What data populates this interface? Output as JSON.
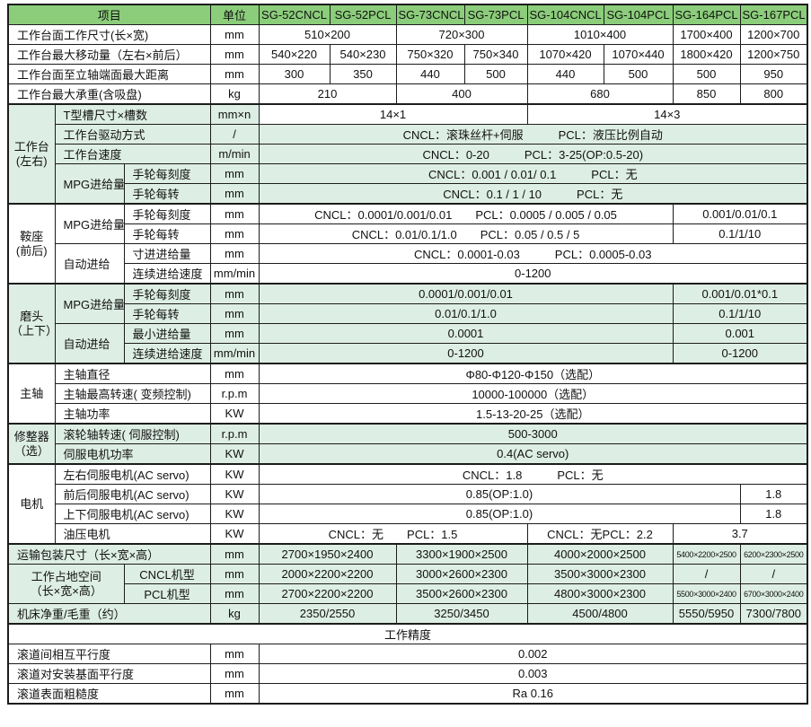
{
  "colors": {
    "header_green": "#8bcd7a",
    "section_light_green": "#ddeee4",
    "grid_border": "#1c1c1c"
  },
  "table": {
    "rows": [
      {
        "tb": true,
        "cells": [
          {
            "t": "项目",
            "cs": 3,
            "c": "hdr",
            "n": "column-header-item"
          },
          {
            "t": "单位",
            "c": "hdr",
            "n": "column-header-unit"
          },
          {
            "t": "SG-52CNCL",
            "c": "hdr",
            "n": "column-header-model"
          },
          {
            "t": "SG-52PCL",
            "c": "hdr",
            "n": "column-header-model"
          },
          {
            "t": "SG-73CNCL",
            "c": "hdr",
            "n": "column-header-model"
          },
          {
            "t": "SG-73PCL",
            "c": "hdr",
            "n": "column-header-model"
          },
          {
            "t": "SG-104CNCL",
            "c": "hdr",
            "n": "column-header-model"
          },
          {
            "t": "SG-104PCL",
            "c": "hdr",
            "n": "column-header-model"
          },
          {
            "t": "SG-164PCL",
            "c": "hdr",
            "n": "column-header-model"
          },
          {
            "t": "SG-167PCL",
            "c": "hdr",
            "n": "column-header-model"
          }
        ]
      },
      {
        "cells": [
          {
            "t": "工作台面工作尺寸(长×宽)",
            "cs": 3,
            "c": "lab"
          },
          {
            "t": "mm",
            "c": "unit"
          },
          {
            "t": "510×200",
            "cs": 2,
            "c": "val"
          },
          {
            "t": "720×300",
            "cs": 2,
            "c": "val"
          },
          {
            "t": "1010×400",
            "cs": 2,
            "c": "val"
          },
          {
            "t": "1700×400",
            "c": "val"
          },
          {
            "t": "1200×700",
            "c": "val"
          }
        ]
      },
      {
        "cells": [
          {
            "t": "工作台最大移动量（左右×前后）",
            "cs": 3,
            "c": "lab"
          },
          {
            "t": "mm",
            "c": "unit"
          },
          {
            "t": "540×220",
            "c": "val"
          },
          {
            "t": "540×230",
            "c": "val"
          },
          {
            "t": "750×320",
            "c": "val"
          },
          {
            "t": "750×340",
            "c": "val"
          },
          {
            "t": "1070×420",
            "c": "val"
          },
          {
            "t": "1070×440",
            "c": "val"
          },
          {
            "t": "1800×420",
            "c": "val"
          },
          {
            "t": "1200×750",
            "c": "val"
          }
        ]
      },
      {
        "cells": [
          {
            "t": "工作台面至立轴端面最大距离",
            "cs": 3,
            "c": "lab"
          },
          {
            "t": "mm",
            "c": "unit"
          },
          {
            "t": "300",
            "c": "val"
          },
          {
            "t": "350",
            "c": "val"
          },
          {
            "t": "440",
            "c": "val"
          },
          {
            "t": "500",
            "c": "val"
          },
          {
            "t": "440",
            "c": "val"
          },
          {
            "t": "500",
            "c": "val"
          },
          {
            "t": "500",
            "c": "val"
          },
          {
            "t": "950",
            "c": "val"
          }
        ]
      },
      {
        "cells": [
          {
            "t": "工作台最大承重(含吸盘)",
            "cs": 3,
            "c": "lab"
          },
          {
            "t": "kg",
            "c": "unit"
          },
          {
            "t": "210",
            "cs": 2,
            "c": "val"
          },
          {
            "t": "400",
            "cs": 2,
            "c": "val"
          },
          {
            "t": "680",
            "cs": 2,
            "c": "val"
          },
          {
            "t": "850",
            "c": "val"
          },
          {
            "t": "800",
            "c": "val"
          }
        ]
      },
      {
        "tb": true,
        "cells": [
          {
            "t": "工作台\n(左右)",
            "rs": 5,
            "c": "sec g"
          },
          {
            "t": "T型槽尺寸×槽数",
            "cs": 2,
            "c": "lab g"
          },
          {
            "t": "mm×n",
            "c": "unit g"
          },
          {
            "t": "14×1",
            "cs": 4,
            "c": "val"
          },
          {
            "t": "14×3",
            "cs": 4,
            "c": "val"
          }
        ]
      },
      {
        "cells": [
          {
            "t": "工作台驱动方式",
            "cs": 2,
            "c": "lab g"
          },
          {
            "t": "/",
            "c": "unit g"
          },
          {
            "t": "CNCL：滚珠丝杆+伺服　　　PCL：液压比例自动",
            "cs": 8,
            "c": "val g"
          }
        ]
      },
      {
        "cells": [
          {
            "t": "工作台速度",
            "cs": 2,
            "c": "lab g"
          },
          {
            "t": "m/min",
            "c": "unit g"
          },
          {
            "t": "CNCL：0-20　　　PCL：3-25(OP:0.5-20)",
            "cs": 8,
            "c": "val g"
          }
        ]
      },
      {
        "cells": [
          {
            "t": "MPG进给量",
            "rs": 2,
            "c": "lab g"
          },
          {
            "t": "手轮每刻度",
            "c": "lab g"
          },
          {
            "t": "mm",
            "c": "unit g"
          },
          {
            "t": "CNCL：0.001 / 0.01/ 0.1　　　PCL：无",
            "cs": 8,
            "c": "val g"
          }
        ]
      },
      {
        "cells": [
          {
            "t": "手轮每转",
            "c": "lab g"
          },
          {
            "t": "mm",
            "c": "unit g"
          },
          {
            "t": "CNCL：0.1 / 1 / 10　　　PCL：无",
            "cs": 8,
            "c": "val g"
          }
        ]
      },
      {
        "tb": true,
        "cells": [
          {
            "t": "鞍座\n(前后)",
            "rs": 4,
            "c": "sec"
          },
          {
            "t": "MPG进给量",
            "rs": 2,
            "c": "lab"
          },
          {
            "t": "手轮每刻度",
            "c": "lab"
          },
          {
            "t": "mm",
            "c": "unit"
          },
          {
            "t": "CNCL：0.0001/0.001/0.01　　PCL：0.0005 / 0.005 / 0.05",
            "cs": 6,
            "c": "val"
          },
          {
            "t": "0.001/0.01/0.1",
            "cs": 2,
            "c": "val"
          }
        ]
      },
      {
        "cells": [
          {
            "t": "手轮每转",
            "c": "lab"
          },
          {
            "t": "mm",
            "c": "unit"
          },
          {
            "t": "CNCL：0.01/0.1/1.0　　PCL：0.05 / 0.5 / 5",
            "cs": 6,
            "c": "val"
          },
          {
            "t": "0.1/1/10",
            "cs": 2,
            "c": "val"
          }
        ]
      },
      {
        "cells": [
          {
            "t": "自动进给",
            "rs": 2,
            "c": "lab"
          },
          {
            "t": "寸进进给量",
            "c": "lab"
          },
          {
            "t": "mm",
            "c": "unit"
          },
          {
            "t": "CNCL：0.0001-0.03　　　PCL：0.0005-0.03",
            "cs": 8,
            "c": "val"
          }
        ]
      },
      {
        "cells": [
          {
            "t": "连续进给速度",
            "c": "lab"
          },
          {
            "t": "mm/min",
            "c": "unit"
          },
          {
            "t": "0-1200",
            "cs": 8,
            "c": "val"
          }
        ]
      },
      {
        "tb": true,
        "cells": [
          {
            "t": "磨头\n（上下）",
            "rs": 4,
            "c": "sec g"
          },
          {
            "t": "MPG进给量",
            "rs": 2,
            "c": "lab g"
          },
          {
            "t": "手轮每刻度",
            "c": "lab g"
          },
          {
            "t": "mm",
            "c": "unit g"
          },
          {
            "t": "0.0001/0.001/0.01",
            "cs": 6,
            "c": "val g"
          },
          {
            "t": "0.001/0.01*0.1",
            "cs": 2,
            "c": "val g"
          }
        ]
      },
      {
        "cells": [
          {
            "t": "手轮每转",
            "c": "lab g"
          },
          {
            "t": "mm",
            "c": "unit g"
          },
          {
            "t": "0.01/0.1/1.0",
            "cs": 6,
            "c": "val g"
          },
          {
            "t": "0.1/1/10",
            "cs": 2,
            "c": "val g"
          }
        ]
      },
      {
        "cells": [
          {
            "t": "自动进给",
            "rs": 2,
            "c": "lab g"
          },
          {
            "t": "最小进给量",
            "c": "lab g"
          },
          {
            "t": "mm",
            "c": "unit g"
          },
          {
            "t": "0.0001",
            "cs": 6,
            "c": "val g"
          },
          {
            "t": "0.001",
            "cs": 2,
            "c": "val g"
          }
        ]
      },
      {
        "cells": [
          {
            "t": "连续进给速度",
            "c": "lab g"
          },
          {
            "t": "mm/min",
            "c": "unit g"
          },
          {
            "t": "0-1200",
            "cs": 6,
            "c": "val g"
          },
          {
            "t": "0-1200",
            "cs": 2,
            "c": "val g"
          }
        ]
      },
      {
        "tb": true,
        "cells": [
          {
            "t": "主轴",
            "rs": 3,
            "c": "sec"
          },
          {
            "t": "主轴直径",
            "cs": 2,
            "c": "lab"
          },
          {
            "t": "mm",
            "c": "unit"
          },
          {
            "t": "Φ80-Φ120-Φ150（选配）",
            "cs": 8,
            "c": "val"
          }
        ]
      },
      {
        "cells": [
          {
            "t": "主轴最高转速( 变频控制)",
            "cs": 2,
            "c": "lab"
          },
          {
            "t": "r.p.m",
            "c": "unit"
          },
          {
            "t": "10000-100000（选配）",
            "cs": 8,
            "c": "val"
          }
        ]
      },
      {
        "cells": [
          {
            "t": "主轴功率",
            "cs": 2,
            "c": "lab"
          },
          {
            "t": "KW",
            "c": "unit"
          },
          {
            "t": "1.5-13-20-25（选配）",
            "cs": 8,
            "c": "val"
          }
        ]
      },
      {
        "tb": true,
        "cells": [
          {
            "t": "修整器\n（选）",
            "rs": 2,
            "c": "sec g"
          },
          {
            "t": "滚轮轴转速( 伺服控制)",
            "cs": 2,
            "c": "lab g"
          },
          {
            "t": "r.p.m",
            "c": "unit g"
          },
          {
            "t": "500-3000",
            "cs": 8,
            "c": "val g"
          }
        ]
      },
      {
        "cells": [
          {
            "t": "伺服电机功率",
            "cs": 2,
            "c": "lab g"
          },
          {
            "t": "KW",
            "c": "unit g"
          },
          {
            "t": "0.4(AC servo)",
            "cs": 8,
            "c": "val g"
          }
        ]
      },
      {
        "tb": true,
        "cells": [
          {
            "t": "电机",
            "rs": 4,
            "c": "sec"
          },
          {
            "t": "左右伺服电机(AC servo)",
            "cs": 2,
            "c": "lab"
          },
          {
            "t": "KW",
            "c": "unit"
          },
          {
            "t": "CNCL：1.8　　　PCL：无",
            "cs": 8,
            "c": "val"
          }
        ]
      },
      {
        "cells": [
          {
            "t": "前后伺服电机(AC servo)",
            "cs": 2,
            "c": "lab"
          },
          {
            "t": "KW",
            "c": "unit"
          },
          {
            "t": "0.85(OP:1.0)",
            "cs": 7,
            "c": "val"
          },
          {
            "t": "1.8",
            "c": "val"
          }
        ]
      },
      {
        "cells": [
          {
            "t": "上下伺服电机(AC servo)",
            "cs": 2,
            "c": "lab"
          },
          {
            "t": "KW",
            "c": "unit"
          },
          {
            "t": "0.85(OP:1.0)",
            "cs": 7,
            "c": "val"
          },
          {
            "t": "1.8",
            "c": "val"
          }
        ]
      },
      {
        "cells": [
          {
            "t": "油压电机",
            "cs": 2,
            "c": "lab"
          },
          {
            "t": "KW",
            "c": "unit"
          },
          {
            "t": "CNCL：无　　PCL：1.5",
            "cs": 4,
            "c": "val"
          },
          {
            "t": "CNCL：无PCL：2.2",
            "cs": 2,
            "c": "val"
          },
          {
            "t": "3.7",
            "cs": 2,
            "c": "val"
          }
        ]
      },
      {
        "tb": true,
        "cells": [
          {
            "t": "运输包装尺寸（长×宽×高）",
            "cs": 3,
            "c": "lab g"
          },
          {
            "t": "mm",
            "c": "unit g"
          },
          {
            "t": "2700×1950×2400",
            "cs": 2,
            "c": "val g"
          },
          {
            "t": "3300×1900×2500",
            "cs": 2,
            "c": "val g"
          },
          {
            "t": "4000×2000×2500",
            "cs": 2,
            "c": "val g"
          },
          {
            "t": "5400×2200×2500",
            "c": "val g sm"
          },
          {
            "t": "6200×2300×2500",
            "c": "val g sm"
          }
        ]
      },
      {
        "cells": [
          {
            "t": "工作占地空间\n（长×宽×高）",
            "rs": 2,
            "cs": 2,
            "c": "sec g"
          },
          {
            "t": "CNCL机型",
            "c": "lab g ctr"
          },
          {
            "t": "mm",
            "c": "unit g"
          },
          {
            "t": "2000×2200×2200",
            "cs": 2,
            "c": "val g"
          },
          {
            "t": "3000×2600×2300",
            "cs": 2,
            "c": "val g"
          },
          {
            "t": "3500×3000×2300",
            "cs": 2,
            "c": "val g"
          },
          {
            "t": "/",
            "c": "val g"
          },
          {
            "t": "/",
            "c": "val g"
          }
        ]
      },
      {
        "cells": [
          {
            "t": "PCL机型",
            "c": "lab g ctr"
          },
          {
            "t": "mm",
            "c": "unit g"
          },
          {
            "t": "2700×2200×2200",
            "cs": 2,
            "c": "val g"
          },
          {
            "t": "3500×2600×2300",
            "cs": 2,
            "c": "val g"
          },
          {
            "t": "4800×3000×2300",
            "cs": 2,
            "c": "val g"
          },
          {
            "t": "5500×3000×2400",
            "c": "val g sm"
          },
          {
            "t": "6700×3000×2400",
            "c": "val g sm"
          }
        ]
      },
      {
        "cells": [
          {
            "t": "机床净重/毛重（约）",
            "cs": 3,
            "c": "lab g"
          },
          {
            "t": "kg",
            "c": "unit g"
          },
          {
            "t": "2350/2550",
            "cs": 2,
            "c": "val g"
          },
          {
            "t": "3250/3450",
            "cs": 2,
            "c": "val g"
          },
          {
            "t": "4500/4800",
            "cs": 2,
            "c": "val g"
          },
          {
            "t": "5550/5950",
            "c": "val g"
          },
          {
            "t": "7300/7800",
            "c": "val g"
          }
        ]
      },
      {
        "tb": true,
        "cells": [
          {
            "t": "工作精度",
            "cs": 12,
            "c": "val",
            "n": "precision-section-title"
          }
        ]
      },
      {
        "cells": [
          {
            "t": "滚道间相互平行度",
            "cs": 3,
            "c": "lab"
          },
          {
            "t": "mm",
            "c": "unit"
          },
          {
            "t": "0.002",
            "cs": 8,
            "c": "val"
          }
        ]
      },
      {
        "cells": [
          {
            "t": "滚道对安装基面平行度",
            "cs": 3,
            "c": "lab"
          },
          {
            "t": "mm",
            "c": "unit"
          },
          {
            "t": "0.003",
            "cs": 8,
            "c": "val"
          }
        ]
      },
      {
        "cells": [
          {
            "t": "滚道表面粗糙度",
            "cs": 3,
            "c": "lab"
          },
          {
            "t": "mm",
            "c": "unit"
          },
          {
            "t": "Ra 0.16",
            "cs": 8,
            "c": "val"
          }
        ]
      }
    ]
  }
}
